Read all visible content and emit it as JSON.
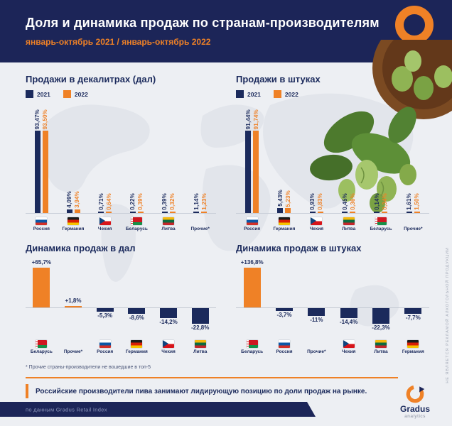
{
  "header": {
    "title": "Доля и динамика продаж по странам-производителям",
    "subtitle": "январь-октябрь 2021 / январь-октябрь 2022"
  },
  "colors": {
    "navy": "#1b2a5c",
    "orange": "#ef8126",
    "background": "#edeff3",
    "positive": "#ef8126",
    "negative": "#1b2a5c"
  },
  "chart_data": [
    {
      "id": "dal-share",
      "type": "bar",
      "title": "Продажи в декалитрах (дал)",
      "categories": [
        "Россия",
        "Германия",
        "Чехия",
        "Беларусь",
        "Литва",
        "Прочие*"
      ],
      "flag_icons": [
        "flag-russia",
        "flag-germany",
        "flag-czechia",
        "flag-belarus",
        "flag-lithuania",
        "none"
      ],
      "series": [
        {
          "name": "2021",
          "color": "#1b2a5c",
          "values": [
            93.47,
            4.09,
            0.71,
            0.22,
            0.39,
            1.14
          ],
          "labels": [
            "93,47%",
            "4,09%",
            "0,71%",
            "0,22%",
            "0,39%",
            "1,14%"
          ]
        },
        {
          "name": "2022",
          "color": "#ef8126",
          "values": [
            93.5,
            3.94,
            0.64,
            0.39,
            0.32,
            1.23
          ],
          "labels": [
            "93,50%",
            "3,94%",
            "0,64%",
            "0,39%",
            "0,32%",
            "1,23%"
          ]
        }
      ],
      "ylim": [
        0,
        100
      ],
      "grid": false,
      "legend_position": "top-left"
    },
    {
      "id": "pieces-share",
      "type": "bar",
      "title": "Продажи в штуках",
      "categories": [
        "Россия",
        "Германия",
        "Чехия",
        "Литва",
        "Беларусь",
        "Прочие*"
      ],
      "flag_icons": [
        "flag-russia",
        "flag-germany",
        "flag-czechia",
        "flag-lithuania",
        "flag-belarus",
        "none"
      ],
      "series": [
        {
          "name": "2021",
          "color": "#1b2a5c",
          "values": [
            91.44,
            5.43,
            0.93,
            0.45,
            0.14,
            1.61
          ],
          "labels": [
            "91,44%",
            "5,43%",
            "0,93%",
            "0,45%",
            "0,14%",
            "1,61%"
          ]
        },
        {
          "name": "2022",
          "color": "#ef8126",
          "values": [
            91.74,
            5.23,
            0.83,
            0.36,
            0.34,
            1.5
          ],
          "labels": [
            "91,74%",
            "5,23%",
            "0,83%",
            "0,36%",
            "0,34%",
            "1,50%"
          ]
        }
      ],
      "ylim": [
        0,
        100
      ],
      "grid": false,
      "legend_position": "top-left"
    },
    {
      "id": "dal-dynamics",
      "type": "bar",
      "title": "Динамика продаж в дал",
      "categories": [
        "Беларусь",
        "Прочие*",
        "Россия",
        "Германия",
        "Чехия",
        "Литва"
      ],
      "flag_icons": [
        "flag-belarus",
        "none",
        "flag-russia",
        "flag-germany",
        "flag-czechia",
        "flag-lithuania"
      ],
      "values": [
        65.7,
        1.8,
        -5.3,
        -8.6,
        -14.2,
        -22.8
      ],
      "labels": [
        "+65,7%",
        "+1,8%",
        "-5,3%",
        "-8,6%",
        "-14,2%",
        "-22,8%"
      ],
      "grid": false
    },
    {
      "id": "pieces-dynamics",
      "type": "bar",
      "title": "Динамика продаж в штуках",
      "categories": [
        "Беларусь",
        "Россия",
        "Прочие*",
        "Чехия",
        "Литва",
        "Германия"
      ],
      "flag_icons": [
        "flag-belarus",
        "flag-russia",
        "none",
        "flag-czechia",
        "flag-lithuania",
        "flag-germany"
      ],
      "values": [
        136.8,
        -3.7,
        -11.0,
        -14.4,
        -22.3,
        -7.7
      ],
      "labels": [
        "+136,8%",
        "-3,7%",
        "-11%",
        "-14,4%",
        "-22,3%",
        "-7,7%"
      ],
      "grid": false
    }
  ],
  "footnote": "* Прочие страны-производители не вошедшие в топ-5",
  "quote": "Российские производители пива занимают лидирующую позицию по доли продаж на рынке.",
  "footer": {
    "source": "по данным Gradus Retail Index",
    "logo_name": "Gradus",
    "logo_sub": "analytics"
  },
  "side_note": "НЕ ЯВЛЯЕТСЯ РЕКЛАМОЙ АЛКОГОЛЬНОЙ ПРОДУКЦИИ"
}
